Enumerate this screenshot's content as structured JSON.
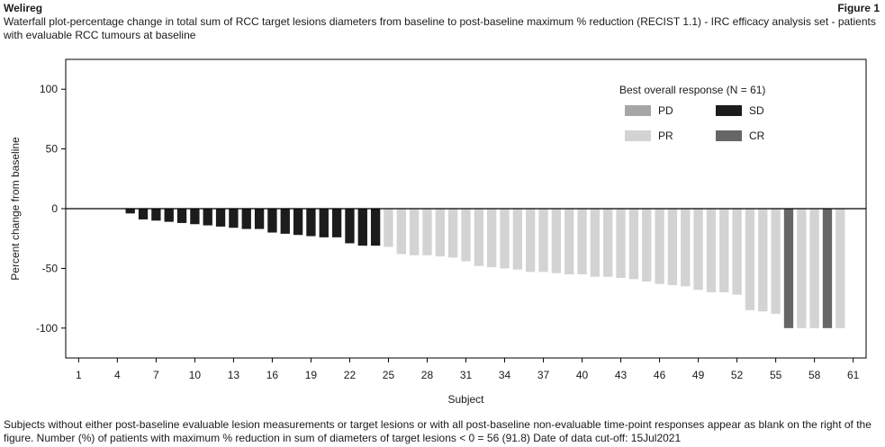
{
  "header": {
    "product": "Welireg",
    "figure_label": "Figure 1"
  },
  "chart_data": {
    "type": "bar",
    "title": "Waterfall plot-percentage change in total sum of RCC target lesions diameters from baseline to post-baseline maximum % reduction (RECIST 1.1) - IRC efficacy analysis set - patients with evaluable RCC tumours at baseline",
    "xlabel": "Subject",
    "ylabel": "Percent change from baseline",
    "ylim": [
      -125,
      125
    ],
    "xlim": [
      0,
      62
    ],
    "yticks": [
      100,
      50,
      0,
      -50,
      -100
    ],
    "xticks": [
      1,
      4,
      7,
      10,
      13,
      16,
      19,
      22,
      25,
      28,
      31,
      34,
      37,
      40,
      43,
      46,
      49,
      52,
      55,
      58,
      61
    ],
    "zero_line": true,
    "grid": false,
    "legend": {
      "title": "Best overall response (N = 61)",
      "placement": "top-right",
      "entries": [
        {
          "key": "PD",
          "label": "PD",
          "color": "#a6a6a6"
        },
        {
          "key": "SD",
          "label": "SD",
          "color": "#1c1c1c"
        },
        {
          "key": "PR",
          "label": "PR",
          "color": "#d3d3d3"
        },
        {
          "key": "CR",
          "label": "CR",
          "color": "#666666"
        }
      ]
    },
    "bars": [
      {
        "subject": 5,
        "value": -4,
        "response": "SD"
      },
      {
        "subject": 6,
        "value": -9,
        "response": "SD"
      },
      {
        "subject": 7,
        "value": -10,
        "response": "SD"
      },
      {
        "subject": 8,
        "value": -11,
        "response": "SD"
      },
      {
        "subject": 9,
        "value": -12,
        "response": "SD"
      },
      {
        "subject": 10,
        "value": -13,
        "response": "SD"
      },
      {
        "subject": 11,
        "value": -14,
        "response": "SD"
      },
      {
        "subject": 12,
        "value": -15,
        "response": "SD"
      },
      {
        "subject": 13,
        "value": -16,
        "response": "SD"
      },
      {
        "subject": 14,
        "value": -17,
        "response": "SD"
      },
      {
        "subject": 15,
        "value": -17,
        "response": "SD"
      },
      {
        "subject": 16,
        "value": -20,
        "response": "SD"
      },
      {
        "subject": 17,
        "value": -21,
        "response": "SD"
      },
      {
        "subject": 18,
        "value": -22,
        "response": "SD"
      },
      {
        "subject": 19,
        "value": -23,
        "response": "SD"
      },
      {
        "subject": 20,
        "value": -24,
        "response": "SD"
      },
      {
        "subject": 21,
        "value": -24,
        "response": "SD"
      },
      {
        "subject": 22,
        "value": -29,
        "response": "SD"
      },
      {
        "subject": 23,
        "value": -31,
        "response": "SD"
      },
      {
        "subject": 24,
        "value": -31,
        "response": "SD"
      },
      {
        "subject": 25,
        "value": -32,
        "response": "PR"
      },
      {
        "subject": 26,
        "value": -38,
        "response": "PR"
      },
      {
        "subject": 27,
        "value": -39,
        "response": "PR"
      },
      {
        "subject": 28,
        "value": -39,
        "response": "PR"
      },
      {
        "subject": 29,
        "value": -40,
        "response": "PR"
      },
      {
        "subject": 30,
        "value": -41,
        "response": "PR"
      },
      {
        "subject": 31,
        "value": -44,
        "response": "PR"
      },
      {
        "subject": 32,
        "value": -48,
        "response": "PR"
      },
      {
        "subject": 33,
        "value": -49,
        "response": "PR"
      },
      {
        "subject": 34,
        "value": -50,
        "response": "PR"
      },
      {
        "subject": 35,
        "value": -51,
        "response": "PR"
      },
      {
        "subject": 36,
        "value": -53,
        "response": "PR"
      },
      {
        "subject": 37,
        "value": -53,
        "response": "PR"
      },
      {
        "subject": 38,
        "value": -54,
        "response": "PR"
      },
      {
        "subject": 39,
        "value": -55,
        "response": "PR"
      },
      {
        "subject": 40,
        "value": -55,
        "response": "PR"
      },
      {
        "subject": 41,
        "value": -57,
        "response": "PR"
      },
      {
        "subject": 42,
        "value": -57,
        "response": "PR"
      },
      {
        "subject": 43,
        "value": -58,
        "response": "PR"
      },
      {
        "subject": 44,
        "value": -59,
        "response": "PR"
      },
      {
        "subject": 45,
        "value": -61,
        "response": "PR"
      },
      {
        "subject": 46,
        "value": -63,
        "response": "PR"
      },
      {
        "subject": 47,
        "value": -64,
        "response": "PR"
      },
      {
        "subject": 48,
        "value": -65,
        "response": "PR"
      },
      {
        "subject": 49,
        "value": -68,
        "response": "PR"
      },
      {
        "subject": 50,
        "value": -70,
        "response": "PR"
      },
      {
        "subject": 51,
        "value": -70,
        "response": "PR"
      },
      {
        "subject": 52,
        "value": -72,
        "response": "PR"
      },
      {
        "subject": 53,
        "value": -85,
        "response": "PR"
      },
      {
        "subject": 54,
        "value": -86,
        "response": "PR"
      },
      {
        "subject": 55,
        "value": -88,
        "response": "PR"
      },
      {
        "subject": 56,
        "value": -100,
        "response": "CR"
      },
      {
        "subject": 57,
        "value": -100,
        "response": "PR"
      },
      {
        "subject": 58,
        "value": -100,
        "response": "PR"
      },
      {
        "subject": 59,
        "value": -100,
        "response": "CR"
      },
      {
        "subject": 60,
        "value": -100,
        "response": "PR"
      }
    ]
  },
  "footnote": "Subjects without either post-baseline evaluable lesion measurements or target lesions or with all post-baseline non-evaluable time-point responses appear as blank on the right of the figure. Number (%) of patients with maximum % reduction in sum of diameters of target lesions < 0  =  56 (91.8) Date of data cut-off: 15Jul2021"
}
